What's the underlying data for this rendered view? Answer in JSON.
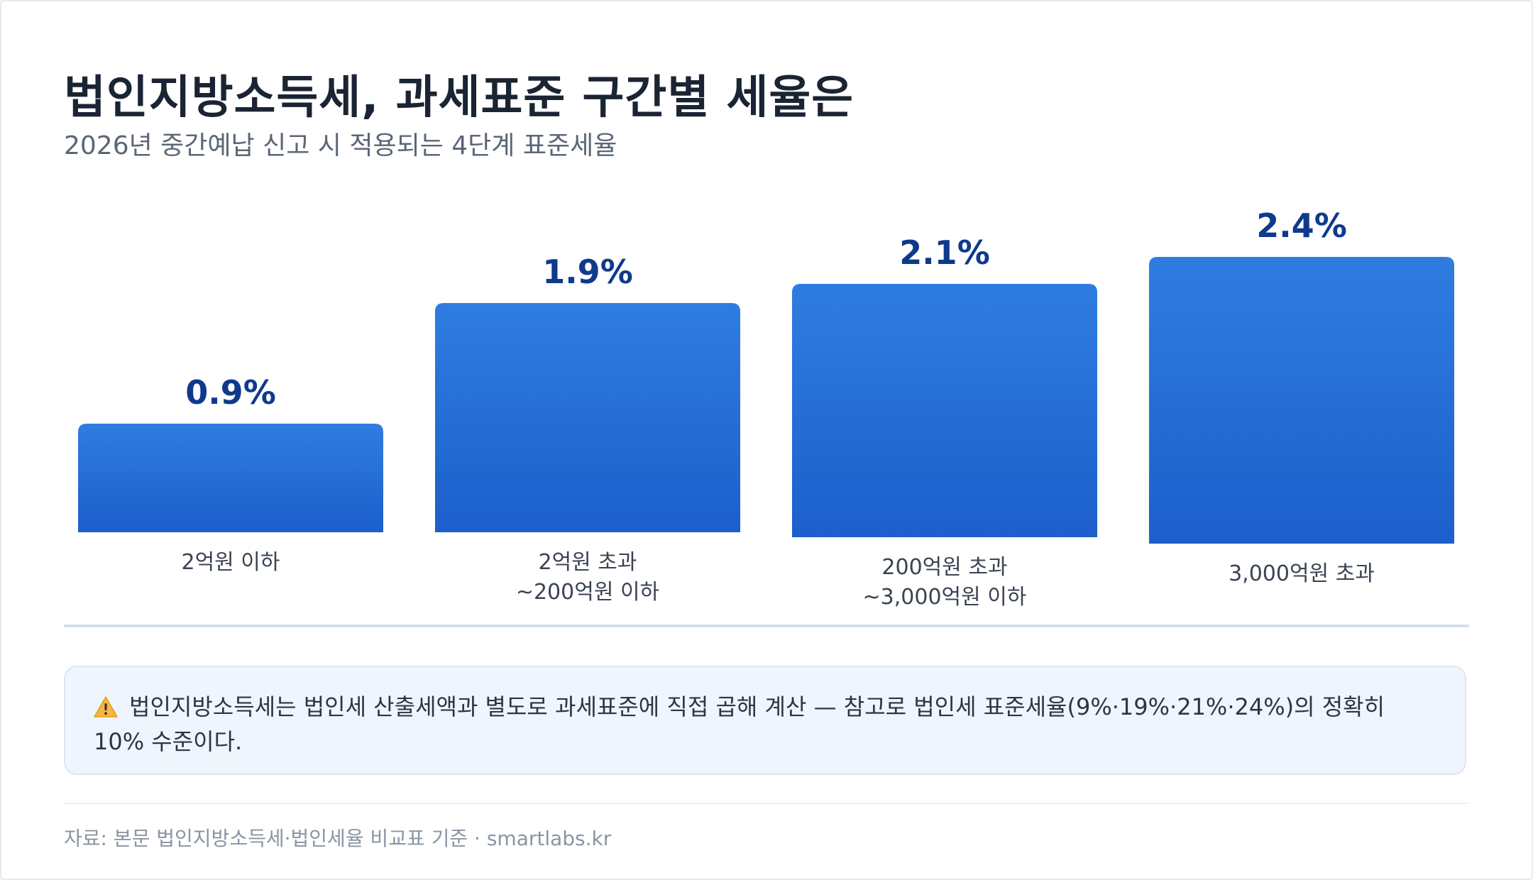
{
  "header": {
    "title": "법인지방소득세, 과세표준 구간별 세율은",
    "subtitle": "2026년 중간예납 신고 시 적용되는 4단계 표준세율"
  },
  "chart_data": {
    "type": "bar",
    "title": "법인지방소득세, 과세표준 구간별 세율은",
    "subtitle": "2026년 중간예납 신고 시 적용되는 4단계 표준세율",
    "categories": [
      [
        "2억원 이하"
      ],
      [
        "2억원 초과",
        "~200억원 이하"
      ],
      [
        "200억원 초과",
        "~3,000억원 이하"
      ],
      [
        "3,000억원 초과"
      ]
    ],
    "values": [
      0.9,
      1.9,
      2.1,
      2.4
    ],
    "value_labels": [
      "0.9%",
      "1.9%",
      "2.1%",
      "2.4%"
    ],
    "unit": "%",
    "xlabel": "",
    "ylabel": "",
    "grid": false,
    "legend": "none",
    "colors": {
      "bar_top": "#2f7de1",
      "bar_bottom": "#1c5fcb",
      "value_label": "#0f3a8c",
      "category_label": "#3a4352"
    }
  },
  "note": {
    "icon": "warning-icon",
    "text": "법인지방소득세는 법인세 산출세액과 별도로 과세표준에 직접 곱해 계산 — 참고로 법인세 표준세율(9%·19%·21%·24%)의 정확히 10% 수준이다."
  },
  "footer": {
    "source": "자료: 본문 법인지방소득세·법인세율 비교표 기준 · smartlabs.kr"
  }
}
